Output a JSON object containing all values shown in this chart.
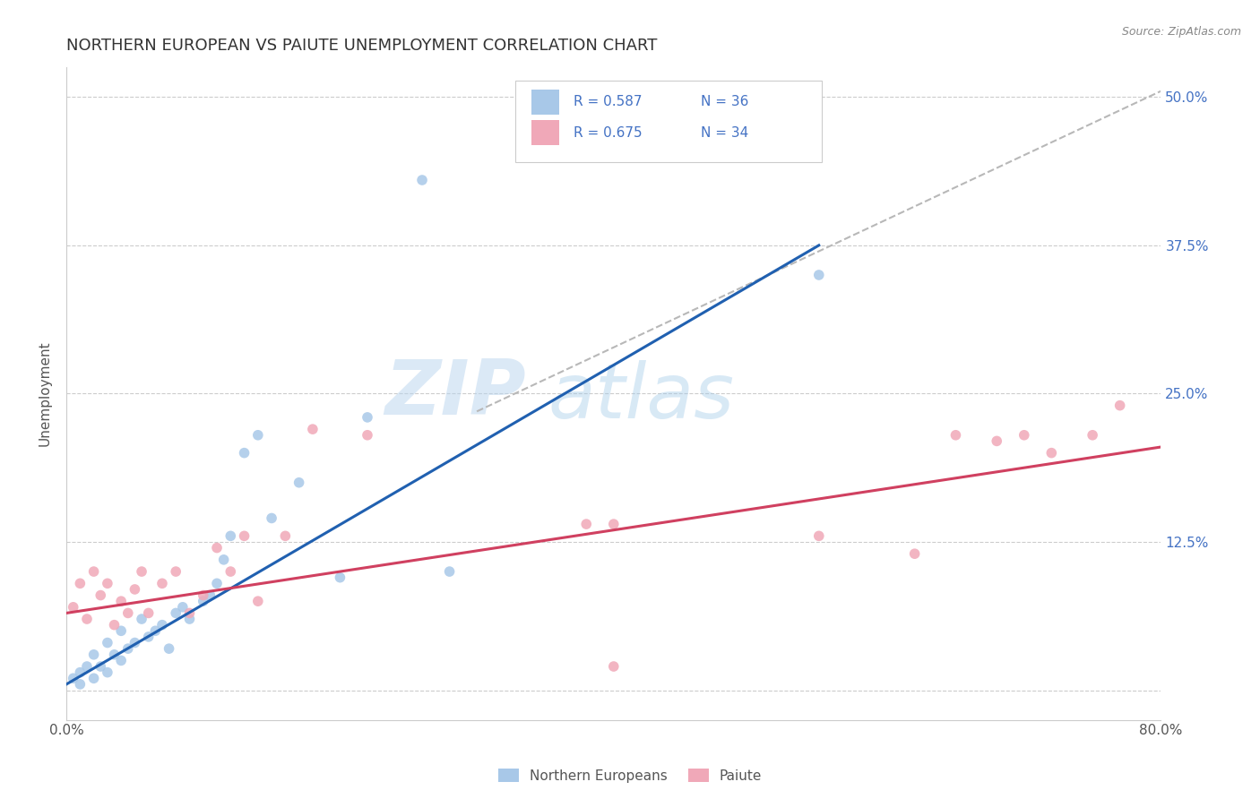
{
  "title": "NORTHERN EUROPEAN VS PAIUTE UNEMPLOYMENT CORRELATION CHART",
  "source": "Source: ZipAtlas.com",
  "ylabel": "Unemployment",
  "xlim": [
    0.0,
    0.8
  ],
  "ylim": [
    -0.025,
    0.525
  ],
  "xticks": [
    0.0,
    0.2,
    0.4,
    0.6,
    0.8
  ],
  "xticklabels": [
    "0.0%",
    "",
    "",
    "",
    "80.0%"
  ],
  "yticks": [
    0.0,
    0.125,
    0.25,
    0.375,
    0.5
  ],
  "yticklabels": [
    "",
    "12.5%",
    "25.0%",
    "37.5%",
    "50.0%"
  ],
  "blue_color": "#a8c8e8",
  "pink_color": "#f0a8b8",
  "blue_line_color": "#2060b0",
  "pink_line_color": "#d04060",
  "dashed_line_color": "#b8b8b8",
  "legend_r1": "0.587",
  "legend_n1": "36",
  "legend_r2": "0.675",
  "legend_n2": "34",
  "watermark_zip": "ZIP",
  "watermark_atlas": "atlas",
  "blue_scatter_x": [
    0.005,
    0.01,
    0.01,
    0.015,
    0.02,
    0.02,
    0.025,
    0.03,
    0.03,
    0.035,
    0.04,
    0.04,
    0.045,
    0.05,
    0.055,
    0.06,
    0.065,
    0.07,
    0.075,
    0.08,
    0.085,
    0.09,
    0.1,
    0.105,
    0.11,
    0.115,
    0.12,
    0.13,
    0.14,
    0.15,
    0.17,
    0.2,
    0.22,
    0.26,
    0.28,
    0.55
  ],
  "blue_scatter_y": [
    0.01,
    0.005,
    0.015,
    0.02,
    0.01,
    0.03,
    0.02,
    0.04,
    0.015,
    0.03,
    0.025,
    0.05,
    0.035,
    0.04,
    0.06,
    0.045,
    0.05,
    0.055,
    0.035,
    0.065,
    0.07,
    0.06,
    0.075,
    0.08,
    0.09,
    0.11,
    0.13,
    0.2,
    0.215,
    0.145,
    0.175,
    0.095,
    0.23,
    0.43,
    0.1,
    0.35
  ],
  "pink_scatter_x": [
    0.005,
    0.01,
    0.015,
    0.02,
    0.025,
    0.03,
    0.035,
    0.04,
    0.045,
    0.05,
    0.055,
    0.06,
    0.07,
    0.08,
    0.09,
    0.1,
    0.11,
    0.12,
    0.13,
    0.14,
    0.16,
    0.18,
    0.22,
    0.38,
    0.4,
    0.55,
    0.62,
    0.65,
    0.68,
    0.7,
    0.72,
    0.75,
    0.77,
    0.4
  ],
  "pink_scatter_y": [
    0.07,
    0.09,
    0.06,
    0.1,
    0.08,
    0.09,
    0.055,
    0.075,
    0.065,
    0.085,
    0.1,
    0.065,
    0.09,
    0.1,
    0.065,
    0.08,
    0.12,
    0.1,
    0.13,
    0.075,
    0.13,
    0.22,
    0.215,
    0.14,
    0.14,
    0.13,
    0.115,
    0.215,
    0.21,
    0.215,
    0.2,
    0.215,
    0.24,
    0.02
  ],
  "blue_line": {
    "x0": 0.0,
    "y0": 0.005,
    "x1": 0.55,
    "y1": 0.375
  },
  "pink_line": {
    "x0": 0.0,
    "y0": 0.065,
    "x1": 0.8,
    "y1": 0.205
  },
  "dash_line": {
    "x0": 0.3,
    "y0": 0.235,
    "x1": 0.8,
    "y1": 0.505
  }
}
